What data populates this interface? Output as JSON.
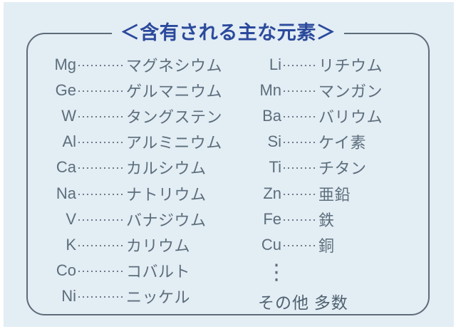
{
  "panel": {
    "title": "＜含有される主な元素＞"
  },
  "left_column": [
    {
      "symbol": "Mg",
      "name": "マグネシウム"
    },
    {
      "symbol": "Ge",
      "name": "ゲルマニウム"
    },
    {
      "symbol": "W",
      "name": "タングステン"
    },
    {
      "symbol": "Al",
      "name": "アルミニウム"
    },
    {
      "symbol": "Ca",
      "name": "カルシウム"
    },
    {
      "symbol": "Na",
      "name": "ナトリウム"
    },
    {
      "symbol": "V",
      "name": "バナジウム"
    },
    {
      "symbol": "K",
      "name": "カリウム"
    },
    {
      "symbol": "Co",
      "name": "コバルト"
    },
    {
      "symbol": "Ni",
      "name": "ニッケル"
    }
  ],
  "right_column": [
    {
      "symbol": "Li",
      "name": "リチウム"
    },
    {
      "symbol": "Mn",
      "name": "マンガン"
    },
    {
      "symbol": "Ba",
      "name": "バリウム"
    },
    {
      "symbol": "Si",
      "name": "ケイ素"
    },
    {
      "symbol": "Ti",
      "name": "チタン"
    },
    {
      "symbol": "Zn",
      "name": "亜鉛"
    },
    {
      "symbol": "Fe",
      "name": "鉄"
    },
    {
      "symbol": "Cu",
      "name": "銅"
    }
  ],
  "more": {
    "ellipsis": "⋮",
    "label": "その他 多数"
  },
  "colors": {
    "background": "#e3edf4",
    "panel_border": "#5d6c78",
    "title_text": "#2b4a9c",
    "body_text": "#5c6e7c"
  }
}
